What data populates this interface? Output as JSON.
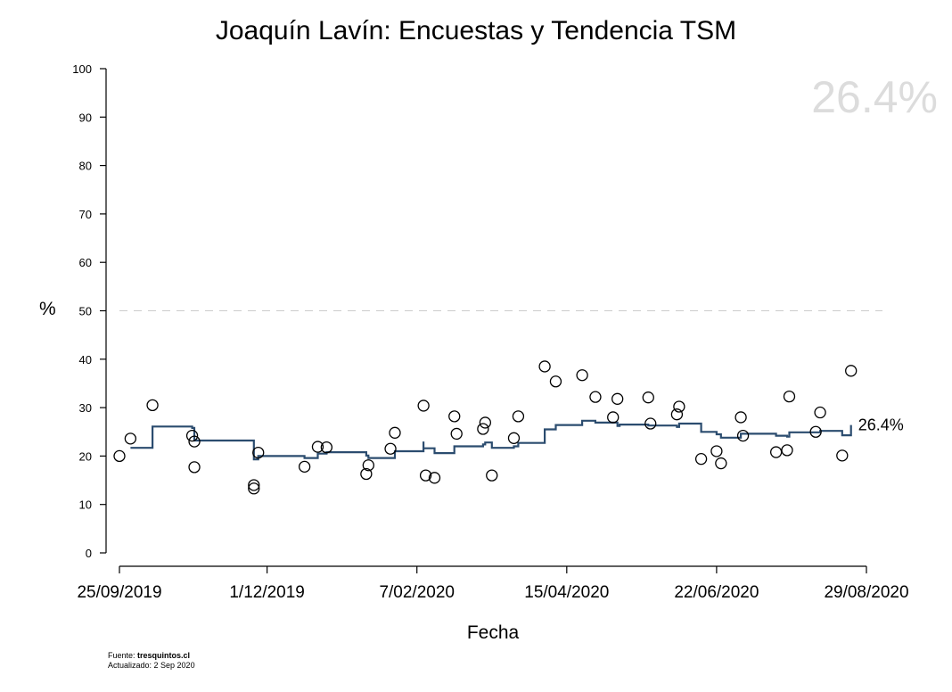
{
  "page": {
    "title": "Joaquín Lavín: Encuestas y Tendencia TSM",
    "watermark": "26.4%",
    "ylabel": "%",
    "xlabel": "Fecha",
    "footer": {
      "source_label": "Fuente: ",
      "source": "tresquintos.cl",
      "updated": "Actualizado: 2 Sep 2020"
    },
    "end_label": "26.4%"
  },
  "chart_data": {
    "type": "scatter",
    "title": "Joaquín Lavín: Encuestas y Tendencia TSM",
    "xlabel": "Fecha",
    "ylabel": "%",
    "xlim": [
      "2019-09-25",
      "2020-08-29"
    ],
    "ylim": [
      0,
      100
    ],
    "x_ticks": [
      "25/09/2019",
      "1/12/2019",
      "7/02/2020",
      "15/04/2020",
      "22/06/2020",
      "29/08/2020"
    ],
    "y_ticks": [
      "0",
      "10",
      "20",
      "30",
      "40",
      "50",
      "60",
      "70",
      "80",
      "90",
      "100"
    ],
    "reference_line": {
      "y": 50,
      "style": "dashed"
    },
    "grid": false,
    "colors": {
      "trend": "#2b4c6f",
      "reference": "#cccccc",
      "watermark": "#dcdcdc"
    },
    "series": [
      {
        "name": "",
        "kind": "points",
        "points": [
          [
            "2019-09-25",
            20.0
          ],
          [
            "2019-09-30",
            23.6
          ],
          [
            "2019-10-10",
            30.5
          ],
          [
            "2019-10-28",
            24.2
          ],
          [
            "2019-10-29",
            23.0
          ],
          [
            "2019-10-29",
            17.7
          ],
          [
            "2019-11-25",
            14.0
          ],
          [
            "2019-11-25",
            13.3
          ],
          [
            "2019-11-27",
            20.7
          ],
          [
            "2019-12-18",
            17.8
          ],
          [
            "2019-12-24",
            21.9
          ],
          [
            "2019-12-28",
            21.8
          ],
          [
            "2020-01-15",
            16.3
          ],
          [
            "2020-01-16",
            18.1
          ],
          [
            "2020-01-26",
            21.5
          ],
          [
            "2020-01-28",
            24.8
          ],
          [
            "2020-02-10",
            30.4
          ],
          [
            "2020-02-11",
            16.0
          ],
          [
            "2020-02-15",
            15.5
          ],
          [
            "2020-02-24",
            28.2
          ],
          [
            "2020-02-25",
            24.6
          ],
          [
            "2020-03-08",
            25.6
          ],
          [
            "2020-03-09",
            26.9
          ],
          [
            "2020-03-12",
            16.0
          ],
          [
            "2020-03-22",
            23.7
          ],
          [
            "2020-03-24",
            28.2
          ],
          [
            "2020-04-05",
            38.5
          ],
          [
            "2020-04-10",
            35.4
          ],
          [
            "2020-04-22",
            36.7
          ],
          [
            "2020-04-28",
            32.2
          ],
          [
            "2020-05-06",
            28.0
          ],
          [
            "2020-05-08",
            31.8
          ],
          [
            "2020-05-22",
            32.1
          ],
          [
            "2020-05-23",
            26.7
          ],
          [
            "2020-06-04",
            28.6
          ],
          [
            "2020-06-05",
            30.2
          ],
          [
            "2020-06-15",
            19.4
          ],
          [
            "2020-06-22",
            21.0
          ],
          [
            "2020-06-24",
            18.5
          ],
          [
            "2020-07-03",
            28.0
          ],
          [
            "2020-07-04",
            24.2
          ],
          [
            "2020-07-19",
            20.8
          ],
          [
            "2020-07-24",
            21.2
          ],
          [
            "2020-07-25",
            32.3
          ],
          [
            "2020-08-06",
            25.0
          ],
          [
            "2020-08-08",
            29.0
          ],
          [
            "2020-08-18",
            20.1
          ],
          [
            "2020-08-22",
            37.6
          ]
        ]
      },
      {
        "name": "",
        "kind": "step",
        "points": [
          [
            "2019-09-30",
            21.7
          ],
          [
            "2019-10-10",
            21.7
          ],
          [
            "2019-10-10",
            26.1
          ],
          [
            "2019-10-28",
            26.1
          ],
          [
            "2019-10-28",
            25.8
          ],
          [
            "2019-10-29",
            25.8
          ],
          [
            "2019-10-29",
            23.2
          ],
          [
            "2019-11-25",
            23.2
          ],
          [
            "2019-11-25",
            19.3
          ],
          [
            "2019-11-27",
            19.3
          ],
          [
            "2019-11-27",
            20.0
          ],
          [
            "2019-12-18",
            20.0
          ],
          [
            "2019-12-18",
            19.6
          ],
          [
            "2019-12-24",
            19.6
          ],
          [
            "2019-12-24",
            20.5
          ],
          [
            "2019-12-28",
            20.5
          ],
          [
            "2019-12-28",
            20.8
          ],
          [
            "2020-01-15",
            20.8
          ],
          [
            "2020-01-15",
            20.1
          ],
          [
            "2020-01-16",
            20.1
          ],
          [
            "2020-01-16",
            19.6
          ],
          [
            "2020-01-28",
            19.6
          ],
          [
            "2020-01-28",
            21.0
          ],
          [
            "2020-02-10",
            21.0
          ],
          [
            "2020-02-10",
            23.0
          ],
          [
            "2020-02-10",
            21.6
          ],
          [
            "2020-02-15",
            21.6
          ],
          [
            "2020-02-15",
            20.6
          ],
          [
            "2020-02-24",
            20.6
          ],
          [
            "2020-02-24",
            22.0
          ],
          [
            "2020-03-08",
            22.0
          ],
          [
            "2020-03-08",
            22.4
          ],
          [
            "2020-03-09",
            22.4
          ],
          [
            "2020-03-09",
            22.8
          ],
          [
            "2020-03-12",
            22.8
          ],
          [
            "2020-03-12",
            21.7
          ],
          [
            "2020-03-22",
            21.7
          ],
          [
            "2020-03-22",
            22.0
          ],
          [
            "2020-03-24",
            22.0
          ],
          [
            "2020-03-24",
            22.7
          ],
          [
            "2020-04-05",
            22.7
          ],
          [
            "2020-04-05",
            25.5
          ],
          [
            "2020-04-10",
            25.5
          ],
          [
            "2020-04-10",
            26.4
          ],
          [
            "2020-04-22",
            26.4
          ],
          [
            "2020-04-22",
            27.3
          ],
          [
            "2020-04-28",
            27.3
          ],
          [
            "2020-04-28",
            26.9
          ],
          [
            "2020-05-08",
            26.9
          ],
          [
            "2020-05-08",
            26.2
          ],
          [
            "2020-05-09",
            26.2
          ],
          [
            "2020-05-09",
            26.5
          ],
          [
            "2020-05-22",
            26.5
          ],
          [
            "2020-05-22",
            26.3
          ],
          [
            "2020-06-04",
            26.3
          ],
          [
            "2020-06-04",
            26.0
          ],
          [
            "2020-06-05",
            26.0
          ],
          [
            "2020-06-05",
            26.7
          ],
          [
            "2020-06-15",
            26.7
          ],
          [
            "2020-06-15",
            25.0
          ],
          [
            "2020-06-22",
            25.0
          ],
          [
            "2020-06-22",
            24.5
          ],
          [
            "2020-06-24",
            24.5
          ],
          [
            "2020-06-24",
            23.8
          ],
          [
            "2020-07-03",
            23.8
          ],
          [
            "2020-07-03",
            24.6
          ],
          [
            "2020-07-19",
            24.6
          ],
          [
            "2020-07-19",
            24.2
          ],
          [
            "2020-07-24",
            24.2
          ],
          [
            "2020-07-24",
            24.0
          ],
          [
            "2020-07-25",
            24.0
          ],
          [
            "2020-07-25",
            24.9
          ],
          [
            "2020-08-08",
            24.9
          ],
          [
            "2020-08-08",
            25.2
          ],
          [
            "2020-08-18",
            25.2
          ],
          [
            "2020-08-18",
            24.3
          ],
          [
            "2020-08-22",
            24.3
          ],
          [
            "2020-08-22",
            26.4
          ]
        ]
      }
    ]
  }
}
